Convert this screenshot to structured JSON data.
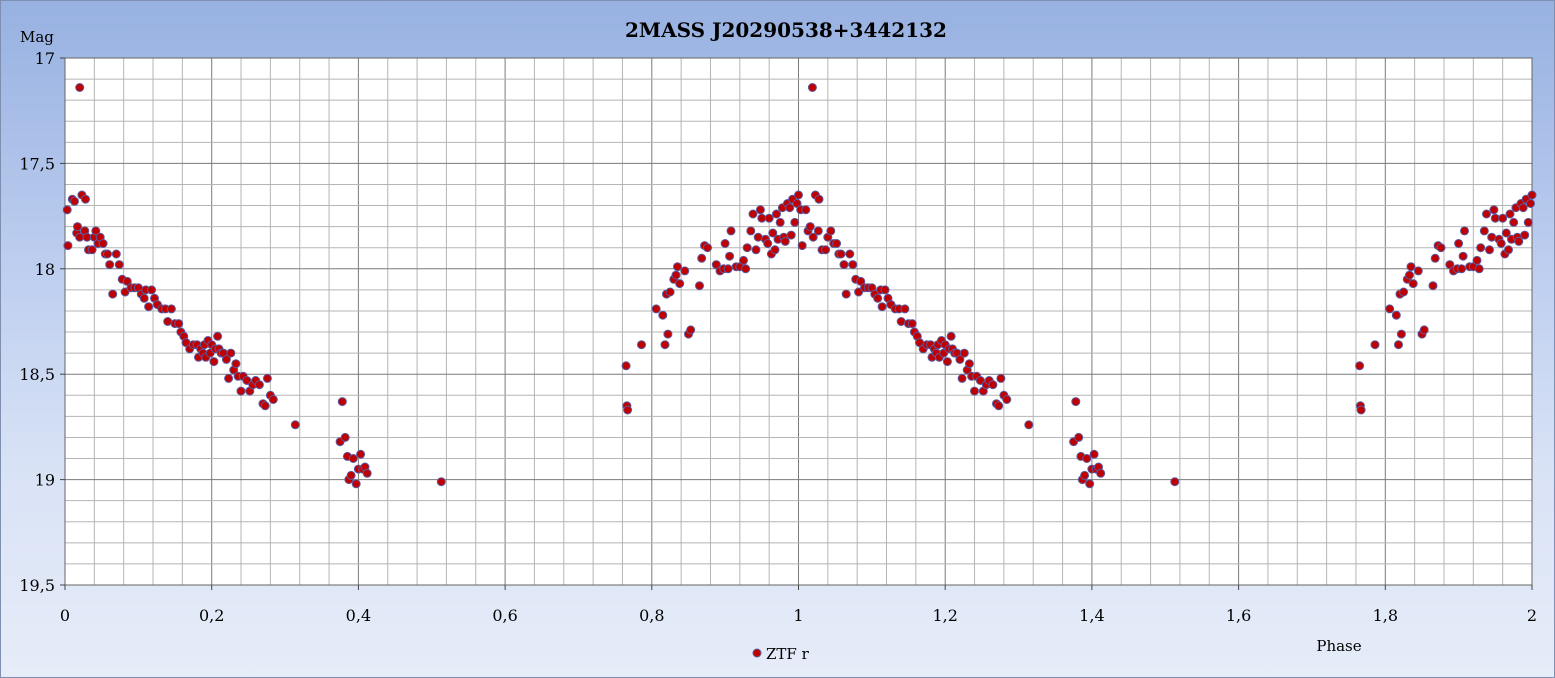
{
  "chart_data": {
    "type": "scatter",
    "title": "2MASS J20290538+3442132",
    "xlabel": "Phase",
    "ylabel": "Mag",
    "xlim": [
      0,
      2
    ],
    "ylim": [
      17,
      19.5
    ],
    "y_inverted": true,
    "x_ticks": [
      "0",
      "0,2",
      "0,4",
      "0,6",
      "0,8",
      "1",
      "1,2",
      "1,4",
      "1,6",
      "1,8",
      "2"
    ],
    "y_ticks": [
      "17",
      "17,5",
      "18",
      "18,5",
      "19",
      "19,5"
    ],
    "grid": true,
    "legend_position": "bottom-center",
    "series": [
      {
        "name": "ZTF r",
        "marker_color": "#c00000",
        "marker_edge": "#5a5aa0",
        "points": [
          [
            0.003,
            17.72
          ],
          [
            0.004,
            17.89
          ],
          [
            0.01,
            17.67
          ],
          [
            0.013,
            17.68
          ],
          [
            0.016,
            17.83
          ],
          [
            0.017,
            17.8
          ],
          [
            0.02,
            17.14
          ],
          [
            0.02,
            17.85
          ],
          [
            0.023,
            17.65
          ],
          [
            0.027,
            17.82
          ],
          [
            0.028,
            17.67
          ],
          [
            0.03,
            17.85
          ],
          [
            0.032,
            17.91
          ],
          [
            0.037,
            17.91
          ],
          [
            0.04,
            17.85
          ],
          [
            0.042,
            17.82
          ],
          [
            0.045,
            17.88
          ],
          [
            0.048,
            17.85
          ],
          [
            0.052,
            17.88
          ],
          [
            0.055,
            17.93
          ],
          [
            0.058,
            17.93
          ],
          [
            0.061,
            17.98
          ],
          [
            0.065,
            18.12
          ],
          [
            0.07,
            17.93
          ],
          [
            0.074,
            17.98
          ],
          [
            0.078,
            18.05
          ],
          [
            0.082,
            18.11
          ],
          [
            0.085,
            18.06
          ],
          [
            0.09,
            18.09
          ],
          [
            0.095,
            18.09
          ],
          [
            0.1,
            18.09
          ],
          [
            0.104,
            18.12
          ],
          [
            0.108,
            18.14
          ],
          [
            0.11,
            18.1
          ],
          [
            0.114,
            18.18
          ],
          [
            0.118,
            18.1
          ],
          [
            0.122,
            18.14
          ],
          [
            0.126,
            18.17
          ],
          [
            0.132,
            18.19
          ],
          [
            0.137,
            18.19
          ],
          [
            0.14,
            18.25
          ],
          [
            0.145,
            18.19
          ],
          [
            0.15,
            18.26
          ],
          [
            0.155,
            18.26
          ],
          [
            0.158,
            18.3
          ],
          [
            0.162,
            18.32
          ],
          [
            0.165,
            18.35
          ],
          [
            0.17,
            18.38
          ],
          [
            0.175,
            18.36
          ],
          [
            0.18,
            18.36
          ],
          [
            0.182,
            18.42
          ],
          [
            0.185,
            18.38
          ],
          [
            0.188,
            18.4
          ],
          [
            0.19,
            18.36
          ],
          [
            0.192,
            18.42
          ],
          [
            0.195,
            18.34
          ],
          [
            0.198,
            18.4
          ],
          [
            0.2,
            18.36
          ],
          [
            0.203,
            18.44
          ],
          [
            0.205,
            18.38
          ],
          [
            0.208,
            18.32
          ],
          [
            0.21,
            18.38
          ],
          [
            0.213,
            18.4
          ],
          [
            0.216,
            18.4
          ],
          [
            0.22,
            18.43
          ],
          [
            0.223,
            18.52
          ],
          [
            0.226,
            18.4
          ],
          [
            0.23,
            18.48
          ],
          [
            0.233,
            18.45
          ],
          [
            0.236,
            18.51
          ],
          [
            0.24,
            18.58
          ],
          [
            0.243,
            18.51
          ],
          [
            0.248,
            18.53
          ],
          [
            0.252,
            18.58
          ],
          [
            0.256,
            18.55
          ],
          [
            0.26,
            18.53
          ],
          [
            0.265,
            18.55
          ],
          [
            0.27,
            18.64
          ],
          [
            0.273,
            18.65
          ],
          [
            0.276,
            18.52
          ],
          [
            0.28,
            18.6
          ],
          [
            0.284,
            18.62
          ],
          [
            0.314,
            18.74
          ],
          [
            0.375,
            18.82
          ],
          [
            0.378,
            18.63
          ],
          [
            0.382,
            18.8
          ],
          [
            0.385,
            18.89
          ],
          [
            0.387,
            19.0
          ],
          [
            0.39,
            18.98
          ],
          [
            0.393,
            18.9
          ],
          [
            0.397,
            19.02
          ],
          [
            0.4,
            18.95
          ],
          [
            0.403,
            18.88
          ],
          [
            0.406,
            18.95
          ],
          [
            0.409,
            18.94
          ],
          [
            0.412,
            18.97
          ],
          [
            0.513,
            19.01
          ],
          [
            0.765,
            18.46
          ],
          [
            0.766,
            18.65
          ],
          [
            0.767,
            18.67
          ],
          [
            0.786,
            18.36
          ],
          [
            0.806,
            18.19
          ],
          [
            0.815,
            18.22
          ],
          [
            0.818,
            18.36
          ],
          [
            0.82,
            18.12
          ],
          [
            0.822,
            18.31
          ],
          [
            0.825,
            18.11
          ],
          [
            0.83,
            18.05
          ],
          [
            0.833,
            18.03
          ],
          [
            0.835,
            17.99
          ],
          [
            0.838,
            18.07
          ],
          [
            0.845,
            18.01
          ],
          [
            0.85,
            18.31
          ],
          [
            0.853,
            18.29
          ],
          [
            0.865,
            18.08
          ],
          [
            0.868,
            17.95
          ],
          [
            0.872,
            17.89
          ],
          [
            0.876,
            17.9
          ],
          [
            0.888,
            17.98
          ],
          [
            0.893,
            18.01
          ],
          [
            0.898,
            18.0
          ],
          [
            0.9,
            17.88
          ],
          [
            0.904,
            18.0
          ],
          [
            0.906,
            17.94
          ],
          [
            0.908,
            17.82
          ],
          [
            0.915,
            17.99
          ],
          [
            0.92,
            17.99
          ],
          [
            0.925,
            17.96
          ],
          [
            0.928,
            18.0
          ],
          [
            0.93,
            17.9
          ],
          [
            0.935,
            17.82
          ],
          [
            0.938,
            17.74
          ],
          [
            0.942,
            17.91
          ],
          [
            0.945,
            17.85
          ],
          [
            0.948,
            17.72
          ],
          [
            0.95,
            17.76
          ],
          [
            0.955,
            17.86
          ],
          [
            0.958,
            17.88
          ],
          [
            0.96,
            17.76
          ],
          [
            0.963,
            17.93
          ],
          [
            0.965,
            17.83
          ],
          [
            0.968,
            17.91
          ],
          [
            0.97,
            17.74
          ],
          [
            0.972,
            17.86
          ],
          [
            0.975,
            17.78
          ],
          [
            0.978,
            17.71
          ],
          [
            0.98,
            17.85
          ],
          [
            0.982,
            17.87
          ],
          [
            0.985,
            17.69
          ],
          [
            0.988,
            17.71
          ],
          [
            0.99,
            17.84
          ],
          [
            0.992,
            17.67
          ],
          [
            0.995,
            17.78
          ],
          [
            0.998,
            17.69
          ],
          [
            1.0,
            17.65
          ],
          [
            1.003,
            17.72
          ],
          [
            1.005,
            17.89
          ],
          [
            1.01,
            17.72
          ],
          [
            1.013,
            17.82
          ],
          [
            1.016,
            17.8
          ],
          [
            1.019,
            17.14
          ],
          [
            1.02,
            17.85
          ],
          [
            1.023,
            17.65
          ],
          [
            1.027,
            17.82
          ],
          [
            1.028,
            17.67
          ],
          [
            1.032,
            17.91
          ],
          [
            1.037,
            17.91
          ],
          [
            1.04,
            17.85
          ],
          [
            1.044,
            17.82
          ],
          [
            1.048,
            17.88
          ],
          [
            1.052,
            17.88
          ],
          [
            1.055,
            17.93
          ],
          [
            1.058,
            17.93
          ],
          [
            1.062,
            17.98
          ],
          [
            1.065,
            18.12
          ],
          [
            1.07,
            17.93
          ],
          [
            1.074,
            17.98
          ],
          [
            1.078,
            18.05
          ],
          [
            1.082,
            18.11
          ],
          [
            1.085,
            18.06
          ],
          [
            1.09,
            18.09
          ],
          [
            1.095,
            18.09
          ],
          [
            1.1,
            18.09
          ],
          [
            1.104,
            18.12
          ],
          [
            1.108,
            18.14
          ],
          [
            1.112,
            18.1
          ],
          [
            1.114,
            18.18
          ],
          [
            1.118,
            18.1
          ],
          [
            1.122,
            18.14
          ],
          [
            1.126,
            18.17
          ],
          [
            1.132,
            18.19
          ],
          [
            1.137,
            18.19
          ],
          [
            1.14,
            18.25
          ],
          [
            1.145,
            18.19
          ],
          [
            1.15,
            18.26
          ],
          [
            1.155,
            18.26
          ],
          [
            1.158,
            18.3
          ],
          [
            1.162,
            18.32
          ],
          [
            1.165,
            18.35
          ],
          [
            1.17,
            18.38
          ],
          [
            1.175,
            18.36
          ],
          [
            1.18,
            18.36
          ],
          [
            1.182,
            18.42
          ],
          [
            1.185,
            18.38
          ],
          [
            1.188,
            18.4
          ],
          [
            1.19,
            18.36
          ],
          [
            1.192,
            18.42
          ],
          [
            1.195,
            18.34
          ],
          [
            1.198,
            18.4
          ],
          [
            1.2,
            18.36
          ],
          [
            1.203,
            18.44
          ],
          [
            1.205,
            18.38
          ],
          [
            1.208,
            18.32
          ],
          [
            1.21,
            18.38
          ],
          [
            1.213,
            18.4
          ],
          [
            1.216,
            18.4
          ],
          [
            1.22,
            18.43
          ],
          [
            1.223,
            18.52
          ],
          [
            1.226,
            18.4
          ],
          [
            1.23,
            18.48
          ],
          [
            1.233,
            18.45
          ],
          [
            1.236,
            18.51
          ],
          [
            1.24,
            18.58
          ],
          [
            1.243,
            18.51
          ],
          [
            1.248,
            18.53
          ],
          [
            1.252,
            18.58
          ],
          [
            1.256,
            18.55
          ],
          [
            1.26,
            18.53
          ],
          [
            1.265,
            18.55
          ],
          [
            1.27,
            18.64
          ],
          [
            1.273,
            18.65
          ],
          [
            1.276,
            18.52
          ],
          [
            1.28,
            18.6
          ],
          [
            1.284,
            18.62
          ],
          [
            1.314,
            18.74
          ],
          [
            1.375,
            18.82
          ],
          [
            1.378,
            18.63
          ],
          [
            1.382,
            18.8
          ],
          [
            1.385,
            18.89
          ],
          [
            1.387,
            19.0
          ],
          [
            1.39,
            18.98
          ],
          [
            1.393,
            18.9
          ],
          [
            1.397,
            19.02
          ],
          [
            1.4,
            18.95
          ],
          [
            1.403,
            18.88
          ],
          [
            1.406,
            18.95
          ],
          [
            1.409,
            18.94
          ],
          [
            1.412,
            18.97
          ],
          [
            1.513,
            19.01
          ],
          [
            1.765,
            18.46
          ],
          [
            1.766,
            18.65
          ],
          [
            1.767,
            18.67
          ],
          [
            1.786,
            18.36
          ],
          [
            1.806,
            18.19
          ],
          [
            1.815,
            18.22
          ],
          [
            1.818,
            18.36
          ],
          [
            1.82,
            18.12
          ],
          [
            1.822,
            18.31
          ],
          [
            1.825,
            18.11
          ],
          [
            1.83,
            18.05
          ],
          [
            1.833,
            18.03
          ],
          [
            1.835,
            17.99
          ],
          [
            1.838,
            18.07
          ],
          [
            1.845,
            18.01
          ],
          [
            1.85,
            18.31
          ],
          [
            1.853,
            18.29
          ],
          [
            1.865,
            18.08
          ],
          [
            1.868,
            17.95
          ],
          [
            1.872,
            17.89
          ],
          [
            1.876,
            17.9
          ],
          [
            1.888,
            17.98
          ],
          [
            1.893,
            18.01
          ],
          [
            1.898,
            18.0
          ],
          [
            1.9,
            17.88
          ],
          [
            1.904,
            18.0
          ],
          [
            1.906,
            17.94
          ],
          [
            1.908,
            17.82
          ],
          [
            1.915,
            17.99
          ],
          [
            1.92,
            17.99
          ],
          [
            1.925,
            17.96
          ],
          [
            1.928,
            18.0
          ],
          [
            1.93,
            17.9
          ],
          [
            1.935,
            17.82
          ],
          [
            1.938,
            17.74
          ],
          [
            1.942,
            17.91
          ],
          [
            1.945,
            17.85
          ],
          [
            1.948,
            17.72
          ],
          [
            1.95,
            17.76
          ],
          [
            1.955,
            17.86
          ],
          [
            1.958,
            17.88
          ],
          [
            1.96,
            17.76
          ],
          [
            1.963,
            17.93
          ],
          [
            1.965,
            17.83
          ],
          [
            1.968,
            17.91
          ],
          [
            1.97,
            17.74
          ],
          [
            1.972,
            17.86
          ],
          [
            1.975,
            17.78
          ],
          [
            1.978,
            17.71
          ],
          [
            1.98,
            17.85
          ],
          [
            1.982,
            17.87
          ],
          [
            1.985,
            17.69
          ],
          [
            1.988,
            17.71
          ],
          [
            1.99,
            17.84
          ],
          [
            1.992,
            17.67
          ],
          [
            1.995,
            17.78
          ],
          [
            1.998,
            17.69
          ],
          [
            2.0,
            17.65
          ]
        ]
      }
    ]
  }
}
